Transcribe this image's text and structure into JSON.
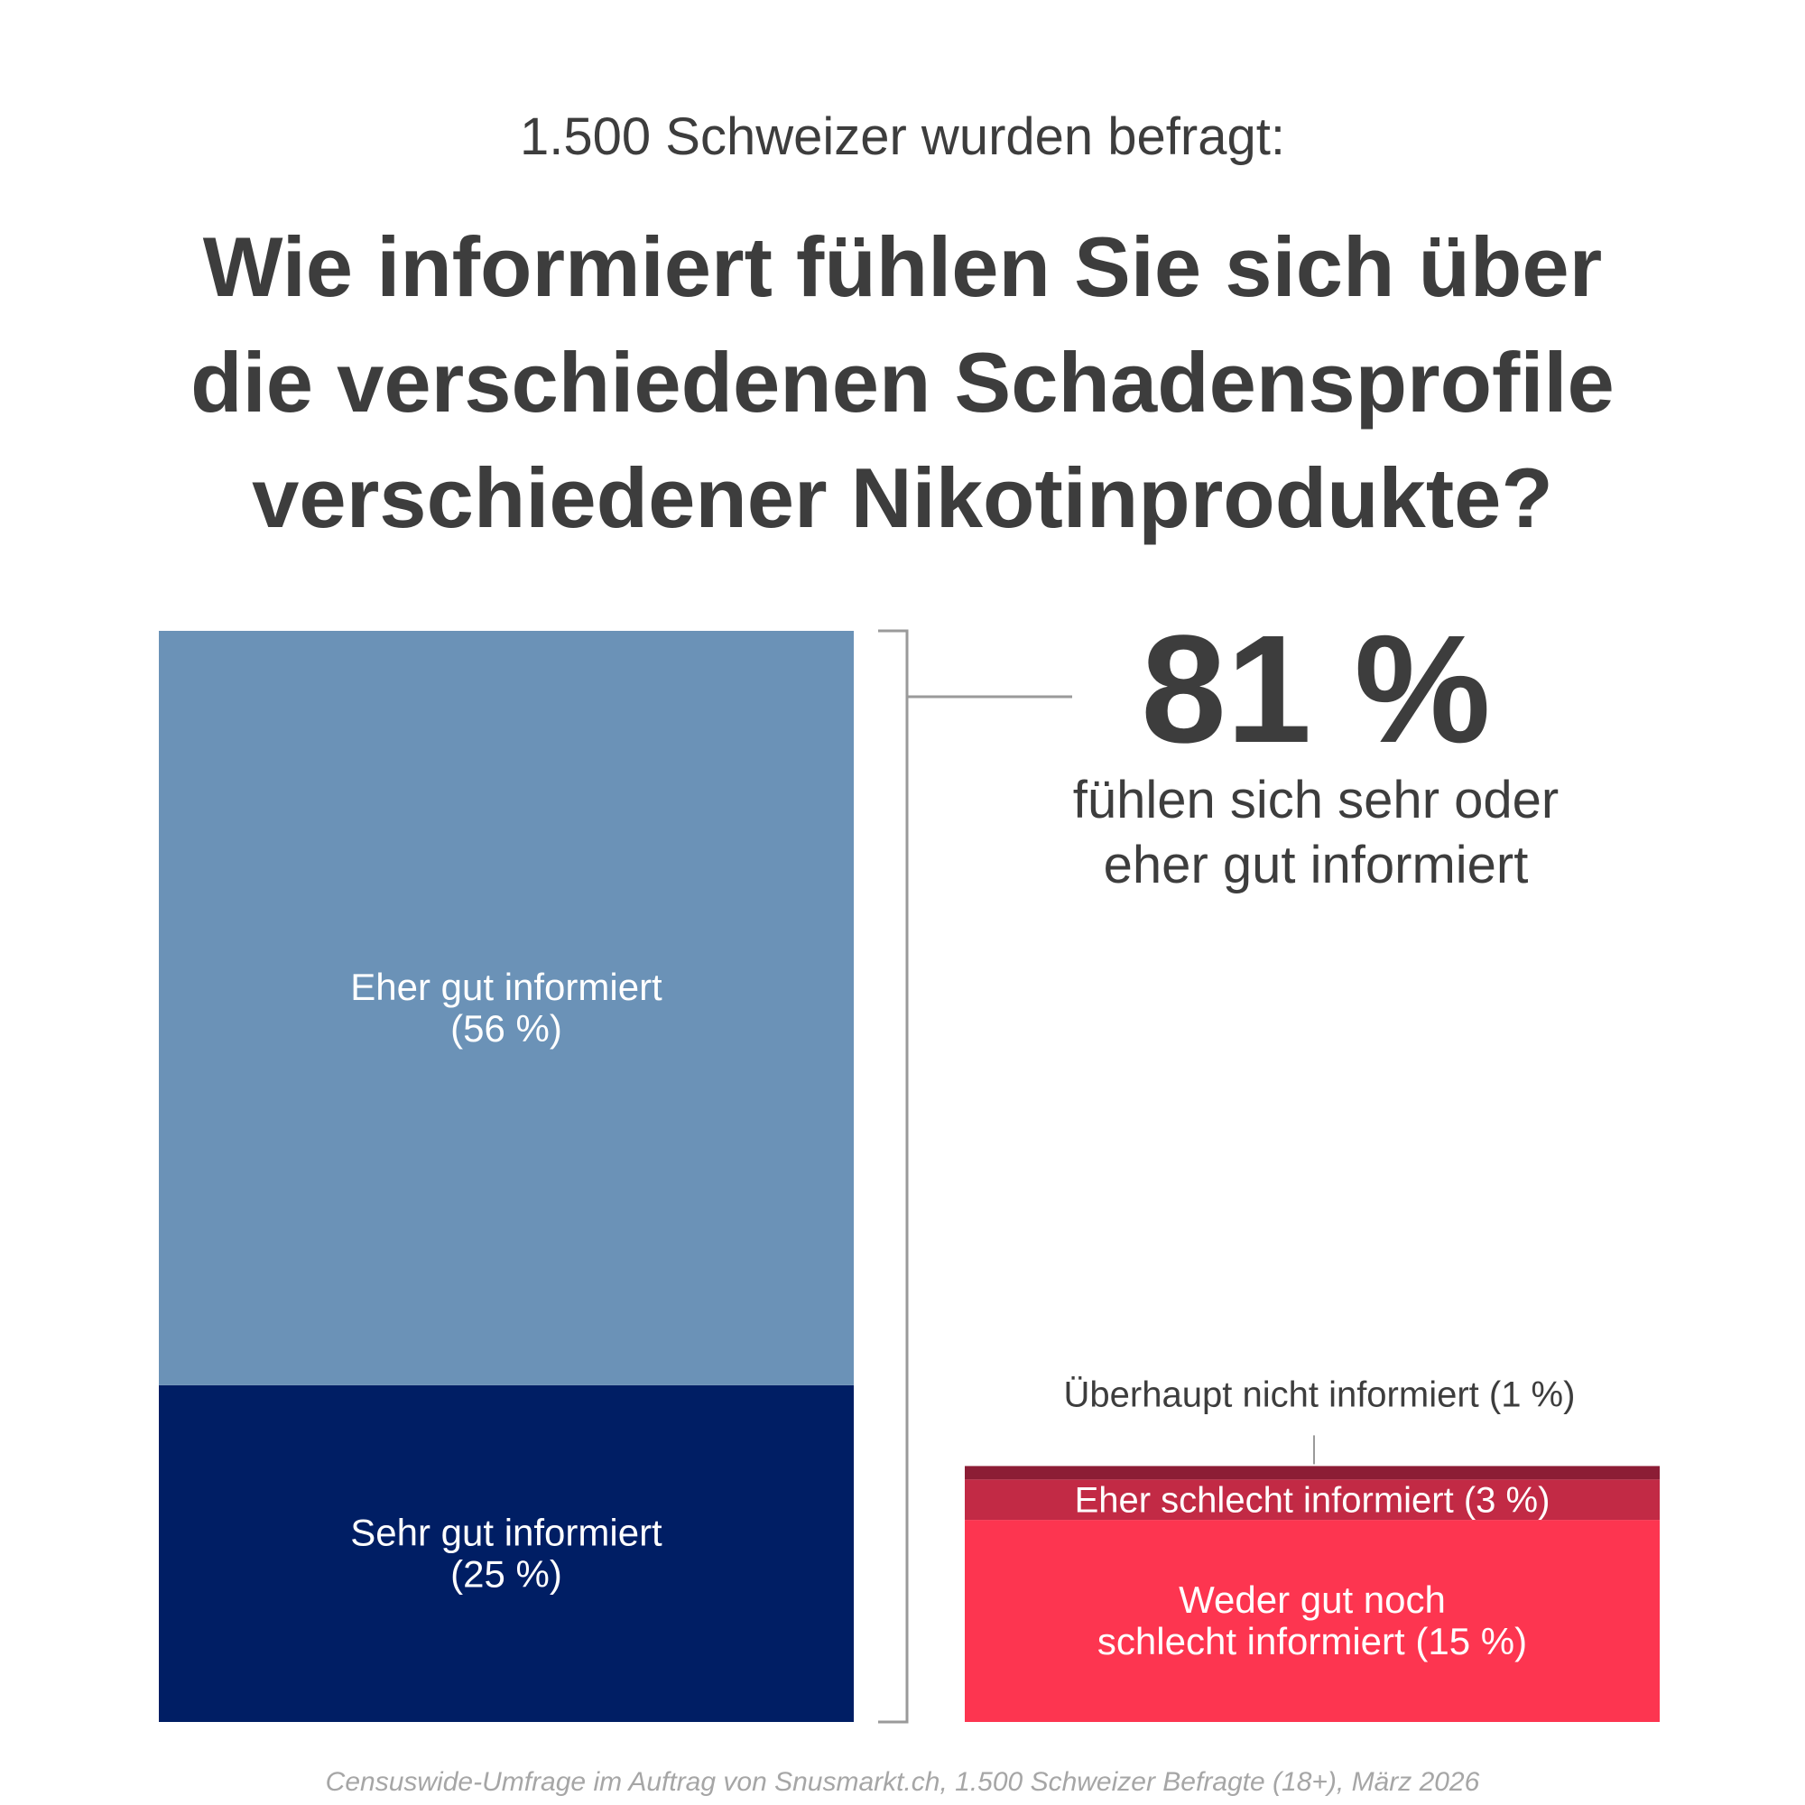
{
  "header": {
    "subtitle": "1.500 Schweizer wurden befragt:",
    "title": "Wie informiert fühlen Sie sich über die verschiedenen Schadensprofile verschiedener Nikotinprodukte?"
  },
  "chart_data": {
    "type": "bar",
    "stacked": true,
    "unit": "%",
    "bars": [
      {
        "segments": [
          {
            "category": "Sehr gut informiert",
            "value": 25,
            "label_lines": [
              "Sehr gut informiert",
              "(25 %)"
            ],
            "color": "#001e64"
          },
          {
            "category": "Eher gut informiert",
            "value": 56,
            "label_lines": [
              "Eher gut informiert",
              "(56 %)"
            ],
            "color": "#6b92b7"
          }
        ]
      },
      {
        "segments": [
          {
            "category": "Weder gut noch schlecht informiert",
            "value": 15,
            "label_lines": [
              "Weder gut noch",
              "schlecht informiert  (15 %)"
            ],
            "color": "#fd3550"
          },
          {
            "category": "Eher schlecht informiert",
            "value": 3,
            "label_lines": [
              "Eher schlecht informiert (3 %)"
            ],
            "color": "#c22a45"
          },
          {
            "category": "Überhaupt nicht informiert",
            "value": 1,
            "label_lines": [
              "Überhaupt nicht informiert (1 %)"
            ],
            "color": "#8c1d35",
            "label_outside": true
          }
        ]
      }
    ],
    "callout": {
      "value": "81 %",
      "text_lines": [
        "fühlen sich sehr oder",
        "eher gut informiert"
      ]
    },
    "colors": {
      "bracket": "#9a9a9a",
      "text_dark": "#3d3d3d",
      "text_light": "#ffffff"
    }
  },
  "footer": {
    "source": "Censuswide-Umfrage im Auftrag von Snusmarkt.ch, 1.500 Schweizer Befragte (18+), März 2026"
  }
}
